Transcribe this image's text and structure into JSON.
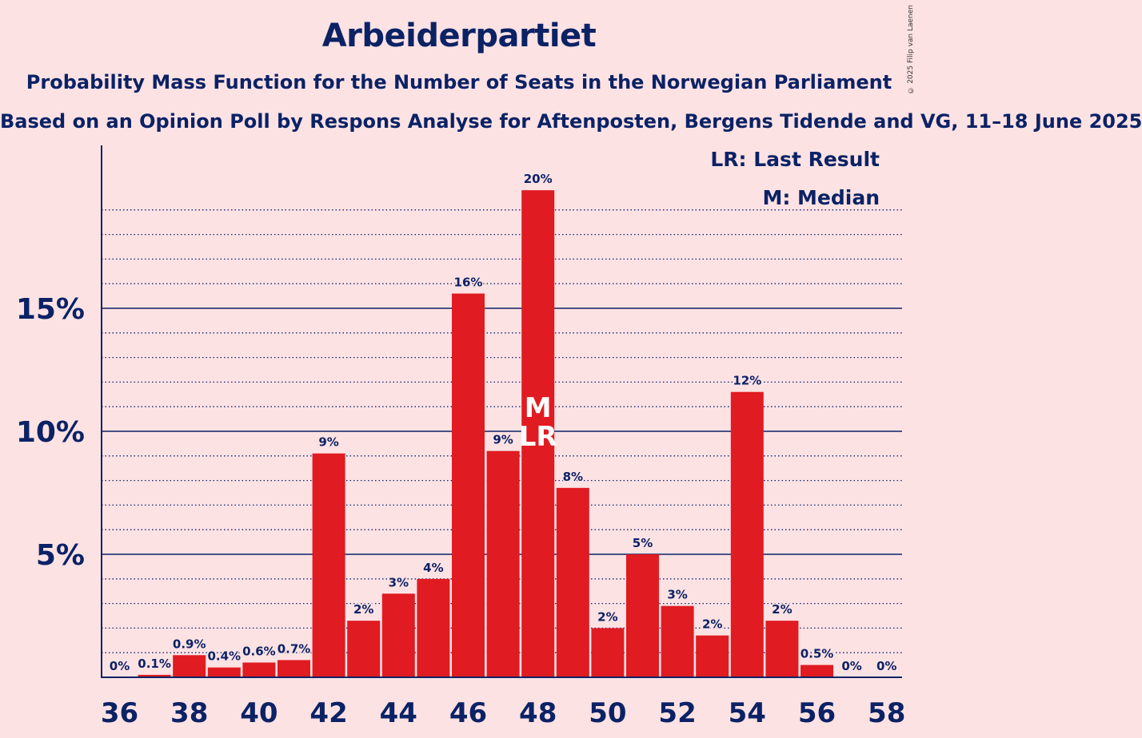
{
  "title": "Arbeiderpartiet",
  "subtitle": "Probability Mass Function for the Number of Seats in the Norwegian Parliament",
  "subtitle2": "Based on an Opinion Poll by Respons Analyse for Aftenposten, Bergens Tidende and VG, 11–18 June 2025",
  "copyright": "© 2025 Filip van Laenen",
  "legend": {
    "last_result": "LR: Last Result",
    "median": "M: Median"
  },
  "colors": {
    "bar": "#e01b22",
    "axis": "#0b2265",
    "background": "#fde2e4"
  },
  "chart_data": {
    "type": "bar",
    "x": [
      36,
      37,
      38,
      39,
      40,
      41,
      42,
      43,
      44,
      45,
      46,
      47,
      48,
      49,
      50,
      51,
      52,
      53,
      54,
      55,
      56,
      57,
      58
    ],
    "values": [
      0,
      0.1,
      0.9,
      0.4,
      0.6,
      0.7,
      9.1,
      2.3,
      3.4,
      4.0,
      15.6,
      9.2,
      19.8,
      7.7,
      2.0,
      5.0,
      2.9,
      1.7,
      11.6,
      2.3,
      0.5,
      0,
      0
    ],
    "labels": [
      "0%",
      "0.1%",
      "0.9%",
      "0.4%",
      "0.6%",
      "0.7%",
      "9%",
      "2%",
      "3%",
      "4%",
      "16%",
      "9%",
      "20%",
      "8%",
      "2%",
      "5%",
      "3%",
      "2%",
      "12%",
      "2%",
      "0.5%",
      "0%",
      "0%"
    ],
    "x_tick_labels": [
      "36",
      "38",
      "40",
      "42",
      "44",
      "46",
      "48",
      "50",
      "52",
      "54",
      "56",
      "58"
    ],
    "y_tick_labels": [
      "5%",
      "10%",
      "15%"
    ],
    "y_ticks": [
      5,
      10,
      15
    ],
    "ylim": [
      0,
      21.5
    ],
    "median": 48,
    "last_result": 48,
    "median_marker": "M",
    "last_result_marker": "LR",
    "grid": true
  }
}
